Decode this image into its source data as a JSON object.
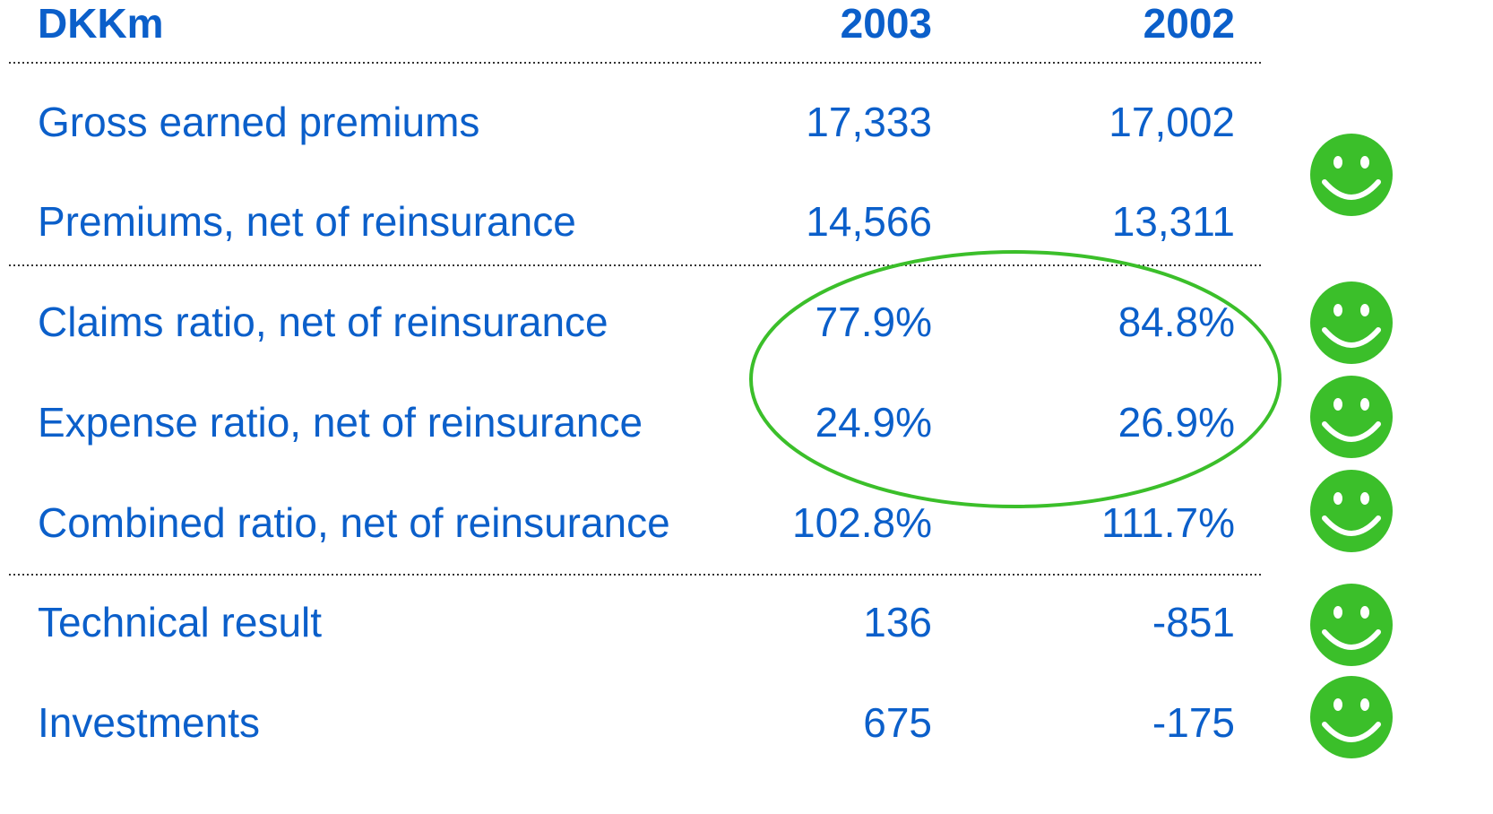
{
  "table": {
    "header": [
      "DKKm",
      "2003",
      "2002"
    ],
    "rows": [
      [
        "Gross earned premiums",
        "17,333",
        "17,002"
      ],
      [
        "Premiums, net of reinsurance",
        "14,566",
        "13,311"
      ],
      [
        "Claims ratio, net of reinsurance",
        "77.9%",
        "84.8%"
      ],
      [
        "Expense ratio, net of reinsurance",
        "24.9%",
        "26.9%"
      ],
      [
        "Combined ratio, net of reinsurance",
        "102.8%",
        "111.7%"
      ],
      [
        "Technical result",
        "136",
        "-851"
      ],
      [
        "Investments",
        "675",
        "-175"
      ]
    ]
  }
}
